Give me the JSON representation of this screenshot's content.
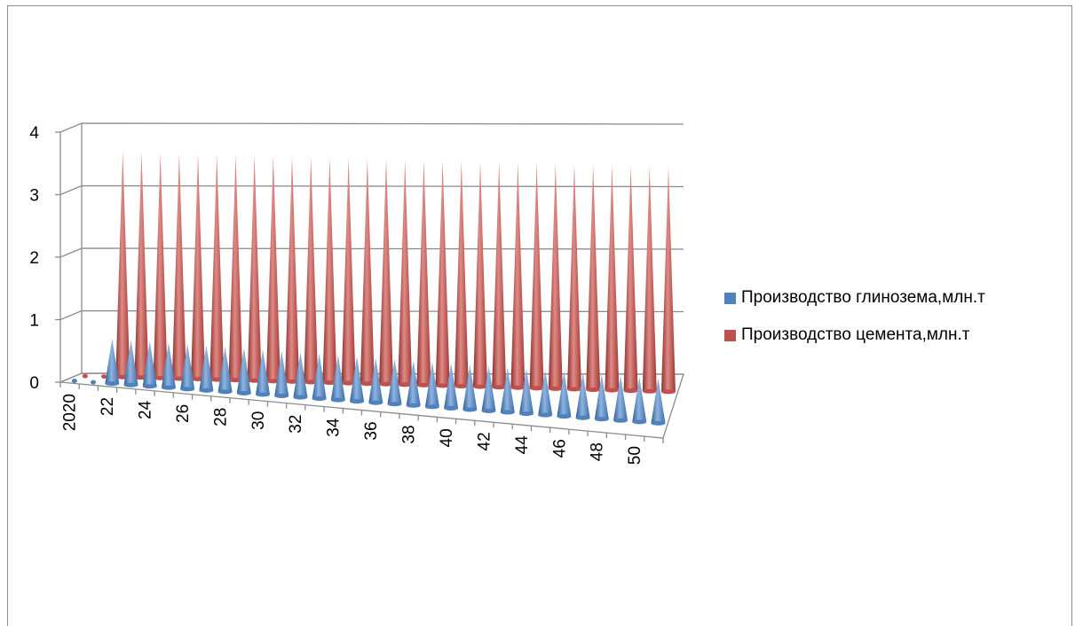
{
  "chart_data": {
    "type": "bar",
    "shape": "cone",
    "title": "",
    "xlabel": "",
    "ylabel": "",
    "ylim": [
      0,
      4
    ],
    "yticks": [
      0,
      1,
      2,
      3,
      4
    ],
    "categories": [
      "2020",
      "21",
      "22",
      "23",
      "24",
      "25",
      "26",
      "27",
      "28",
      "29",
      "30",
      "31",
      "32",
      "33",
      "34",
      "35",
      "36",
      "37",
      "38",
      "39",
      "40",
      "41",
      "42",
      "43",
      "44",
      "45",
      "46",
      "47",
      "48",
      "49",
      "50",
      "51"
    ],
    "xtick_labels": [
      "2020",
      "22",
      "24",
      "26",
      "28",
      "30",
      "32",
      "34",
      "36",
      "38",
      "40",
      "42",
      "44",
      "46",
      "48",
      "50"
    ],
    "series": [
      {
        "name": "Производство глинозема,млн.т",
        "color": "#4f81bd",
        "values": [
          0.02,
          0.02,
          0.72,
          0.72,
          0.72,
          0.72,
          0.72,
          0.72,
          0.72,
          0.72,
          0.72,
          0.72,
          0.72,
          0.72,
          0.72,
          0.72,
          0.72,
          0.72,
          0.72,
          0.72,
          0.72,
          0.72,
          0.72,
          0.72,
          0.72,
          0.72,
          0.72,
          0.72,
          0.72,
          0.72,
          0.72,
          0.72
        ]
      },
      {
        "name": "Производство цемента,млн.т",
        "color": "#c0504d",
        "values": [
          0.02,
          0.02,
          3.6,
          3.6,
          3.6,
          3.6,
          3.6,
          3.6,
          3.6,
          3.6,
          3.6,
          3.6,
          3.6,
          3.6,
          3.6,
          3.6,
          3.6,
          3.6,
          3.6,
          3.6,
          3.6,
          3.6,
          3.6,
          3.6,
          3.6,
          3.6,
          3.6,
          3.6,
          3.6,
          3.6,
          3.6,
          3.6
        ]
      }
    ],
    "grid": true,
    "legend_position": "right"
  }
}
